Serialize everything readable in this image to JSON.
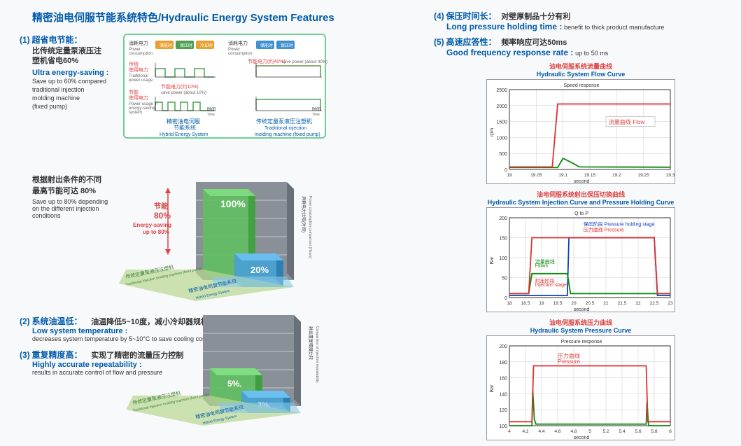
{
  "page_title": "精密油电伺服节能系统特色/Hydraulic Energy System Features",
  "feat1": {
    "num": "(1)",
    "title_cn": "超省电节能：",
    "desc_cn_l1": "比传统定量泵液压注",
    "desc_cn_l2": "塑机省电60%",
    "en_bold": "Ultra energy-saving :",
    "en_l1": "Save up to 60% compared",
    "en_l2": "traditional injection",
    "en_l3": "molding machine",
    "en_l4": "(fixed pump)"
  },
  "diagram1": {
    "power_cn": "消耗电力",
    "power_en": "Power consumption",
    "trad_cn": "传统",
    "trad_cn2": "使用电力",
    "trad_en": "Traditional power usage",
    "save_cn": "节能",
    "save_cn2": "使用电力",
    "save_en": "Power usage in energy-saving system",
    "time_cn": "时间",
    "time_en": "Time",
    "note40_cn": "节能电力(约40%)",
    "note40_en": "save power (about 40%)",
    "note10_cn": "节能电力(约10%)",
    "note10_en": "save power (about 10%)",
    "left_title_cn": "精密油电伺服",
    "left_title_cn2": "节能系统",
    "left_title_en": "Hybrid Energy System",
    "right_title_cn": "传统定量泵液压注塑机",
    "right_title_en": "Traditional injection",
    "right_title_en2": "molding machine (fixed pump)",
    "blocks": [
      "储能时",
      "保压时",
      "冷却时"
    ],
    "blocks2": [
      "储能时",
      "保压时"
    ],
    "block_colors": [
      "#e8a030",
      "#4aa050",
      "#e8a030"
    ],
    "block_colors2": [
      "#4090d0",
      "#4090d0"
    ]
  },
  "feat1b": {
    "cn_l1": "根据射出条件的不同",
    "cn_l2": "最高节能可达 80%",
    "en_l1": "Save up to 80% depending",
    "en_l2": "on the different injection",
    "en_l3": "conditions"
  },
  "bars_a": {
    "label_100": "100%",
    "label_20": "20%",
    "save_cn": "节能",
    "save_pct": "80%",
    "save_en1": "Energy-saving",
    "save_en2": "up to 80%",
    "base1_cn": "传统定量泵液压注塑机",
    "base1_en": "Traditional injection molding machine (fixed pump)",
    "base2_cn": "精密油电伺服节能系统",
    "base2_en": "Hybrid Energy System",
    "side_cn": "消耗电力比较(时间)",
    "side_en": "Power consumption comparison (Hours)",
    "color_trad": "#5fbf60",
    "color_hybrid": "#4aa0d0",
    "color_wall": "#808890"
  },
  "bars_b": {
    "label_5": "5%",
    "label_3": "3%",
    "base1_cn": "传统定量泵液压注塑机",
    "base1_en": "Traditional injection molding machine (fixed pump)",
    "base2_cn": "精密油电伺服节能系统",
    "base2_en": "Hybrid Energy System",
    "side_cn": "射出重复精度比较",
    "side_en": "Comparison of injection repeatability"
  },
  "feat2": {
    "num": "(2)",
    "title_cn": "系统油温低：",
    "desc_cn": "油温降低5~10度，减小冷却器规格",
    "en_bold": "Low system temperature :",
    "en": "decreases system temperature by 5~10°C to save cooling costs"
  },
  "feat3": {
    "num": "(3)",
    "title_cn": "重复精度高：",
    "desc_cn": "实现了精密的流量压力控制",
    "en_bold": "Highly accurate repeatability :",
    "en": "results in accurate control of flow and pressure"
  },
  "feat4": {
    "num": "(4)",
    "title_cn": "保压时间长：",
    "desc_cn": "对壁厚制品十分有利",
    "en_bold": "Long pressure holding time :",
    "en": "benefit to thick product manufacture"
  },
  "feat5": {
    "num": "(5)",
    "title_cn": "高速应答性：",
    "desc_cn": "频率响应可达50ms",
    "en_bold": "Good frequency response rate :",
    "en": "up to 50 ms"
  },
  "chart1": {
    "title_cn": "油电伺服系统流量曲线",
    "title_en": "Hydraulic System Flow Curve",
    "subtitle": "Speed response",
    "ylabel": "rpm",
    "xlabel": "second",
    "y_ticks": [
      0,
      500,
      1000,
      1500,
      2000,
      2500
    ],
    "x_ticks": [
      19,
      19.05,
      19.1,
      19.15,
      19.2,
      19.25,
      19.3
    ],
    "flow_cn": "流量曲线",
    "flow_en": "Flow",
    "red_line": [
      [
        19,
        80
      ],
      [
        19.08,
        80
      ],
      [
        19.09,
        2050
      ],
      [
        19.3,
        2050
      ]
    ],
    "green_line": [
      [
        19,
        60
      ],
      [
        19.09,
        60
      ],
      [
        19.1,
        350
      ],
      [
        19.12,
        180
      ],
      [
        19.13,
        80
      ],
      [
        19.3,
        70
      ]
    ],
    "colors": {
      "red": "#e03030",
      "green": "#0a8a0a",
      "grid": "#cccccc",
      "bg": "#ffffff"
    }
  },
  "chart2": {
    "title_cn": "油电伺服系统射出保压切换曲线",
    "title_en": "Hydraulic System Injection Curve and Pressure Holding Curve",
    "subtitle": "Q to P",
    "ylabel": "Bar",
    "xlabel": "second",
    "y_ticks": [
      0,
      50,
      100,
      150,
      200
    ],
    "x_ticks": [
      18,
      18.5,
      19,
      19.5,
      20,
      20.5,
      21,
      21.5,
      22,
      22.5,
      23
    ],
    "legend": [
      {
        "cn": "保压阶段",
        "en": "Pressure holding stage",
        "color": "#1040c0"
      },
      {
        "cn": "流量曲线",
        "en": "Flows",
        "color": "#0a8a0a"
      },
      {
        "cn": "压力曲线",
        "en": "Pressure",
        "color": "#e03030"
      },
      {
        "cn": "射出阶段",
        "en": "Injection stage",
        "color": "#e03030"
      }
    ],
    "red_line": [
      [
        18,
        10
      ],
      [
        18.6,
        10
      ],
      [
        18.7,
        150
      ],
      [
        22.5,
        150
      ],
      [
        22.6,
        10
      ],
      [
        23,
        10
      ]
    ],
    "green_line": [
      [
        18,
        10
      ],
      [
        18.6,
        10
      ],
      [
        18.7,
        60
      ],
      [
        19.8,
        60
      ],
      [
        19.9,
        10
      ],
      [
        23,
        10
      ]
    ],
    "blue_line": [
      [
        18,
        5
      ],
      [
        19.8,
        5
      ],
      [
        19.85,
        150
      ],
      [
        22.5,
        150
      ],
      [
        22.6,
        5
      ],
      [
        23,
        5
      ]
    ]
  },
  "chart3": {
    "title_cn": "油电伺服系统压力曲线",
    "title_en": "Hydraulic System Pressure Curve",
    "subtitle": "Pressure response",
    "ylabel": "Bar",
    "xlabel": "second",
    "y_ticks": [
      100,
      120,
      140,
      160,
      180,
      200
    ],
    "x_ticks": [
      4,
      4.2,
      4.4,
      4.6,
      4.8,
      5,
      5.2,
      5.4,
      5.6,
      5.8,
      6
    ],
    "press_cn": "压力曲线",
    "press_en": "Pressure",
    "red_line": [
      [
        4,
        105
      ],
      [
        4.28,
        105
      ],
      [
        4.3,
        175
      ],
      [
        5.7,
        175
      ],
      [
        5.72,
        105
      ],
      [
        6,
        105
      ]
    ],
    "green_line": [
      [
        4,
        100
      ],
      [
        4.28,
        100
      ],
      [
        4.29,
        145
      ],
      [
        4.31,
        108
      ],
      [
        4.33,
        102
      ],
      [
        5.7,
        102
      ],
      [
        5.71,
        130
      ],
      [
        5.73,
        100
      ],
      [
        6,
        100
      ]
    ]
  }
}
